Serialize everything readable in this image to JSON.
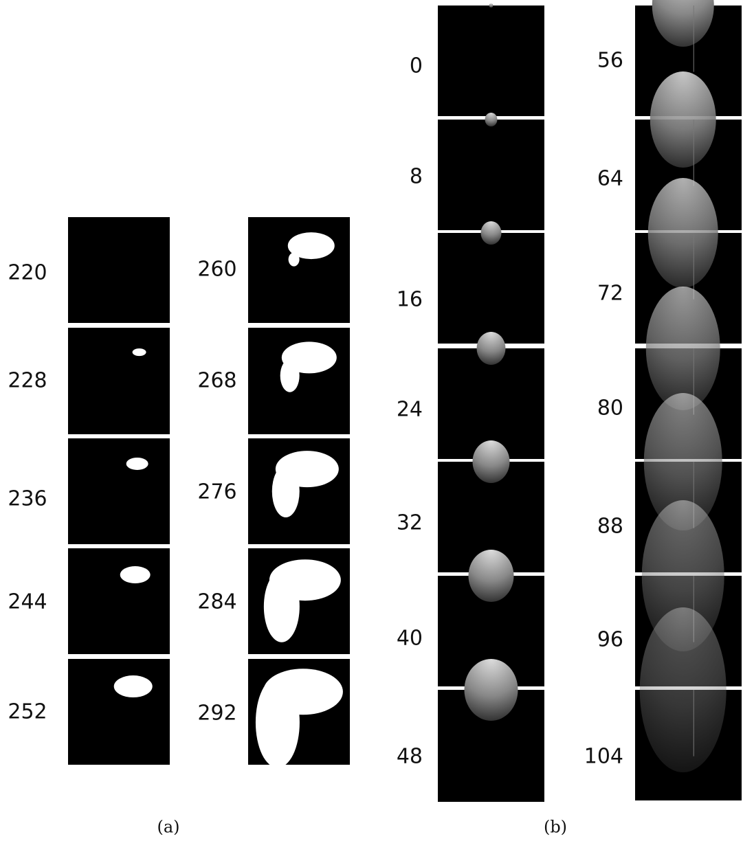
{
  "panels": [
    {
      "caption": "(a)",
      "columns": [
        {
          "frames": [
            220,
            228,
            236,
            244,
            252
          ]
        },
        {
          "frames": [
            260,
            268,
            276,
            284,
            292
          ]
        }
      ]
    },
    {
      "caption": "(b)",
      "columns": [
        {
          "frames": [
            0,
            8,
            16,
            24,
            32,
            40,
            48
          ]
        },
        {
          "frames": [
            56,
            64,
            72,
            80,
            88,
            96,
            104
          ]
        }
      ]
    }
  ]
}
